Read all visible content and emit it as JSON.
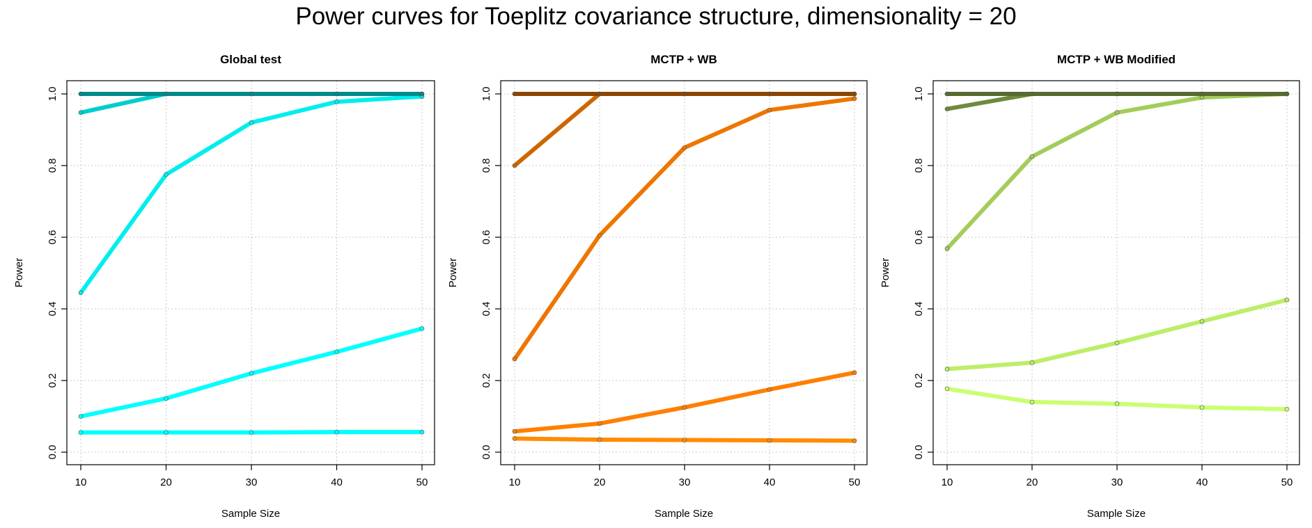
{
  "title": "Power curves for Toeplitz covariance structure, dimensionality = 20",
  "chart_data": [
    {
      "type": "line",
      "title": "Global test",
      "xlabel": "Sample Size",
      "ylabel": "Power",
      "x": [
        10,
        20,
        30,
        40,
        50
      ],
      "xlim": [
        10,
        50
      ],
      "ylim": [
        0,
        1
      ],
      "xticks": [
        "10",
        "20",
        "30",
        "40",
        "50"
      ],
      "yticks": [
        "0.0",
        "0.2",
        "0.4",
        "0.6",
        "0.8",
        "1.0"
      ],
      "grid": true,
      "series": [
        {
          "color": "#00ffff",
          "values": [
            0.055,
            0.055,
            0.055,
            0.056,
            0.056
          ]
        },
        {
          "color": "#00ffff",
          "values": [
            0.1,
            0.15,
            0.22,
            0.28,
            0.345
          ]
        },
        {
          "color": "#00eeee",
          "values": [
            0.445,
            0.775,
            0.92,
            0.978,
            0.993
          ]
        },
        {
          "color": "#00cdcd",
          "values": [
            0.948,
            1.0,
            1.0,
            1.0,
            1.0
          ]
        },
        {
          "color": "#008b8b",
          "values": [
            1.0,
            1.0,
            1.0,
            1.0,
            1.0
          ]
        }
      ]
    },
    {
      "type": "line",
      "title": "MCTP + WB",
      "xlabel": "Sample Size",
      "ylabel": "Power",
      "x": [
        10,
        20,
        30,
        40,
        50
      ],
      "xlim": [
        10,
        50
      ],
      "ylim": [
        0,
        1
      ],
      "xticks": [
        "10",
        "20",
        "30",
        "40",
        "50"
      ],
      "yticks": [
        "0.0",
        "0.2",
        "0.4",
        "0.6",
        "0.8",
        "1.0"
      ],
      "grid": true,
      "series": [
        {
          "color": "#ff8c00",
          "values": [
            0.038,
            0.035,
            0.034,
            0.033,
            0.032
          ]
        },
        {
          "color": "#ff7f00",
          "values": [
            0.058,
            0.08,
            0.125,
            0.175,
            0.222
          ]
        },
        {
          "color": "#ee7600",
          "values": [
            0.26,
            0.605,
            0.85,
            0.955,
            0.987
          ]
        },
        {
          "color": "#cd6600",
          "values": [
            0.8,
            1.0,
            1.0,
            1.0,
            1.0
          ]
        },
        {
          "color": "#8b4500",
          "values": [
            1.0,
            1.0,
            1.0,
            1.0,
            1.0
          ]
        }
      ]
    },
    {
      "type": "line",
      "title": "MCTP + WB Modified",
      "xlabel": "Sample Size",
      "ylabel": "Power",
      "x": [
        10,
        20,
        30,
        40,
        50
      ],
      "xlim": [
        10,
        50
      ],
      "ylim": [
        0,
        1
      ],
      "xticks": [
        "10",
        "20",
        "30",
        "40",
        "50"
      ],
      "yticks": [
        "0.0",
        "0.2",
        "0.4",
        "0.6",
        "0.8",
        "1.0"
      ],
      "grid": true,
      "series": [
        {
          "color": "#caff70",
          "values": [
            0.177,
            0.14,
            0.135,
            0.125,
            0.12
          ]
        },
        {
          "color": "#bcee68",
          "values": [
            0.232,
            0.25,
            0.305,
            0.365,
            0.425
          ]
        },
        {
          "color": "#a2cd5a",
          "values": [
            0.568,
            0.825,
            0.948,
            0.99,
            1.0
          ]
        },
        {
          "color": "#6e8b3d",
          "values": [
            0.958,
            1.0,
            1.0,
            1.0,
            1.0
          ]
        },
        {
          "color": "#556b2f",
          "values": [
            1.0,
            1.0,
            1.0,
            1.0,
            1.0
          ]
        }
      ]
    }
  ]
}
